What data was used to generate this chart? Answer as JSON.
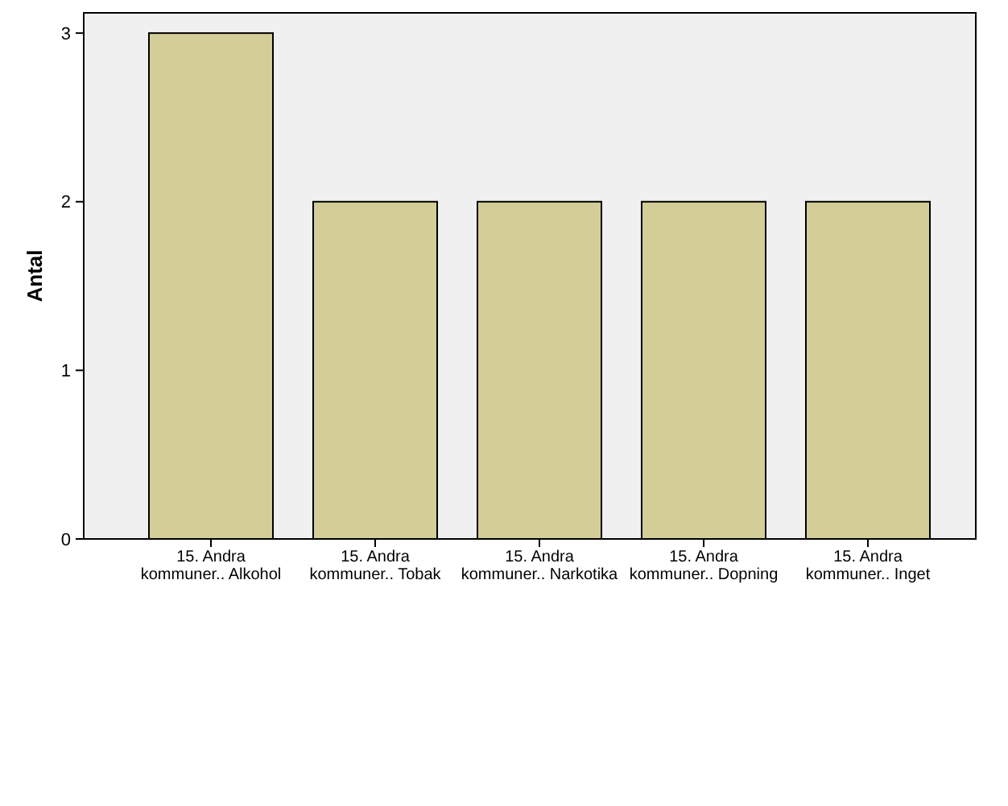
{
  "chart_data": {
    "type": "bar",
    "ylabel": "Antal",
    "categories": [
      "15.  Andra\nkommuner.. Alkohol",
      "15.  Andra\nkommuner.. Tobak",
      "15.  Andra\nkommuner.. Narkotika",
      "15.  Andra\nkommuner.. Dopning",
      "15.  Andra\nkommuner.. Inget"
    ],
    "values": [
      3,
      2,
      2,
      2,
      2
    ],
    "color": "#d3ce97",
    "ylim": [
      0,
      3.12
    ],
    "yticks": [
      0,
      1,
      2,
      3
    ],
    "grid": false
  }
}
